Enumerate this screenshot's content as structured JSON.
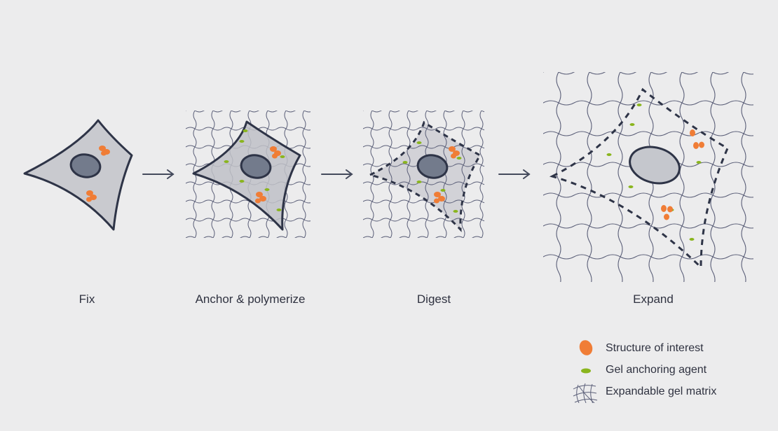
{
  "steps": [
    {
      "label": "Fix"
    },
    {
      "label": "Anchor & polymerize"
    },
    {
      "label": "Digest"
    },
    {
      "label": "Expand"
    }
  ],
  "legend": [
    {
      "label": "Structure of interest",
      "icon": "orange-blob-icon"
    },
    {
      "label": "Gel anchoring agent",
      "icon": "green-dash-icon"
    },
    {
      "label": "Expandable gel matrix",
      "icon": "gel-mesh-icon"
    }
  ],
  "colors": {
    "background": "#ececed",
    "outline": "#2e3447",
    "cell_fill": "#c9cacf",
    "nucleus_fill": "#737b8c",
    "mesh": "#5b5f78",
    "structure": "#f07d36",
    "anchor": "#8ab51e"
  }
}
